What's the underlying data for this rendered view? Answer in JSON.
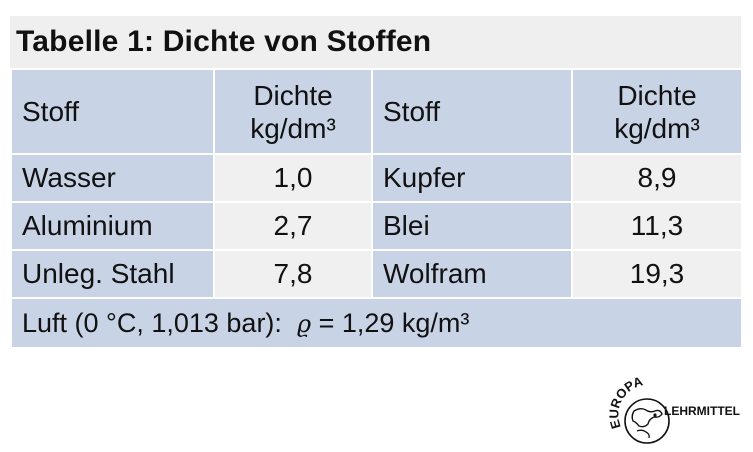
{
  "title": "Tabelle 1:  Dichte von Stoffen",
  "header": {
    "stoff": "Stoff",
    "dichte_line1": "Dichte",
    "dichte_line2": "kg/dm³",
    "stoff2": "Stoff",
    "dichte2_line1": "Dichte",
    "dichte2_line2": "kg/dm³"
  },
  "rows": [
    {
      "stoff": "Wasser",
      "dichte": "1,0",
      "stoff2": "Kupfer",
      "dichte2": "8,9"
    },
    {
      "stoff": "Aluminium",
      "dichte": "2,7",
      "stoff2": "Blei",
      "dichte2": "11,3"
    },
    {
      "stoff": "Unleg. Stahl",
      "dichte": "7,8",
      "stoff2": "Wolfram",
      "dichte2": "19,3"
    }
  ],
  "footer": {
    "prefix": "Luft (0 °C, 1,013 bar):",
    "symbol": "ϱ",
    "suffix": "= 1,29 kg/m³"
  },
  "logo": {
    "top_text": "EUROPA",
    "side_text": "LEHRMITTEL",
    "icon": "globe-icon"
  }
}
